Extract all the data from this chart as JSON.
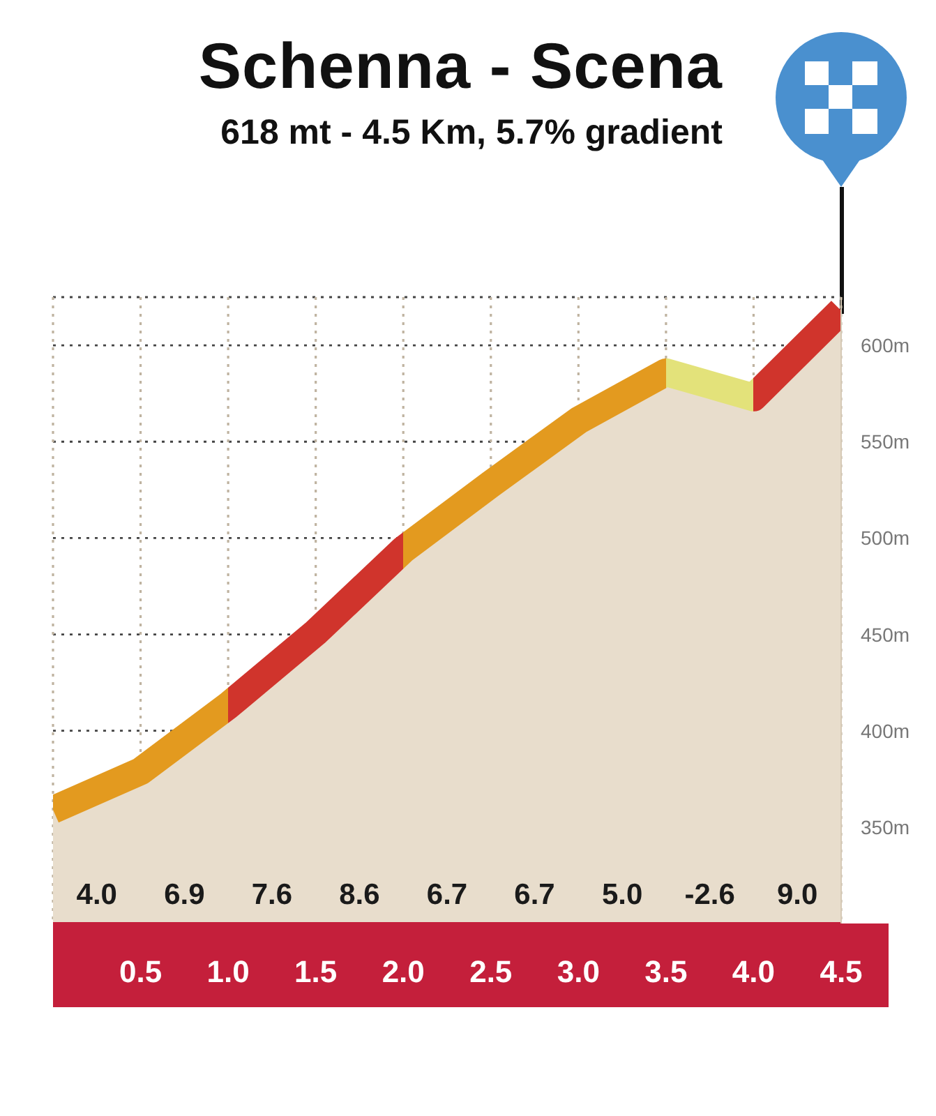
{
  "chart_data": {
    "type": "area",
    "title": "Schenna - Scena",
    "subtitle": "618 mt - 4.5 Km, 5.7% gradient",
    "x": [
      0,
      0.5,
      1.0,
      1.5,
      2.0,
      2.5,
      3.0,
      3.5,
      4.0,
      4.5
    ],
    "values": [
      359,
      379,
      413,
      451,
      494,
      528,
      561,
      586,
      573,
      618
    ],
    "color": "#e8ddcc",
    "colors": [
      "#e39a1f",
      "#e39a1f",
      "#e39a1f",
      "#d0342c",
      "#d0342c",
      "#e39a1f",
      "#e39a1f",
      "#e39a1f",
      "#e3e27a",
      "#d0342c"
    ],
    "xlim": [
      0,
      4.5
    ],
    "xticks": [
      0.5,
      {
        "value": 1,
        "label": "1.0"
      },
      1.5,
      {
        "value": 2,
        "label": "2.0"
      },
      2.5,
      {
        "value": 3,
        "label": "3.0"
      },
      3.5,
      {
        "value": 4,
        "label": "4.0"
      },
      4.5
    ],
    "ylim": [
      300,
      625
    ],
    "yticks": [
      {
        "value": 350,
        "label": "350m"
      },
      {
        "value": 400,
        "label": "400m"
      },
      {
        "value": 450,
        "label": "450m"
      },
      {
        "value": 500,
        "label": "500m"
      },
      {
        "value": 550,
        "label": "550m"
      },
      {
        "value": 600,
        "label": "600m"
      }
    ],
    "grid": true,
    "annotations": [
      "4.0",
      "6.9",
      "7.6",
      "8.6",
      "6.7",
      "6.7",
      "5.0",
      "-2.6",
      "9.0"
    ]
  }
}
